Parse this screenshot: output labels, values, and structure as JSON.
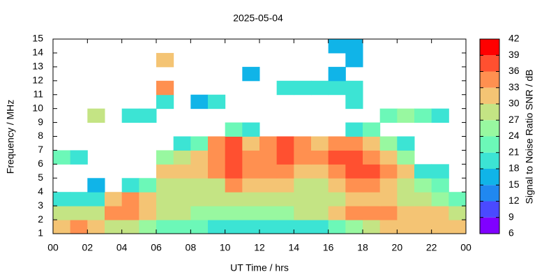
{
  "chart_data": {
    "type": "heatmap",
    "title": "2025-05-04",
    "xlabel": "UT Time / hrs",
    "ylabel": "Frequency / MHz",
    "xlim": [
      0,
      24
    ],
    "xticks": [
      {
        "value": 0,
        "label": "00"
      },
      {
        "value": 2,
        "label": "02"
      },
      {
        "value": 4,
        "label": "04"
      },
      {
        "value": 6,
        "label": "06"
      },
      {
        "value": 8,
        "label": "08"
      },
      10,
      12,
      14,
      16,
      18,
      20,
      22,
      {
        "value": 24,
        "label": "00"
      }
    ],
    "ylim": [
      1,
      15
    ],
    "yticks": [
      1,
      2,
      3,
      4,
      5,
      6,
      7,
      8,
      9,
      10,
      11,
      12,
      13,
      14,
      15
    ],
    "x_edges": [
      0,
      1,
      2,
      3,
      4,
      5,
      6,
      7,
      8,
      9,
      10,
      11,
      12,
      13,
      14,
      15,
      16,
      17,
      18,
      19,
      20,
      21,
      22,
      23,
      24
    ],
    "y_edges": [
      1,
      2,
      3,
      4,
      5,
      6,
      7,
      8,
      9,
      10,
      11,
      12,
      13,
      14,
      15
    ],
    "values": [
      [
        30,
        33,
        30,
        27,
        27,
        24,
        22,
        22,
        21,
        20,
        19,
        18,
        18,
        18,
        19,
        20,
        22,
        24,
        27,
        30,
        30,
        30,
        30,
        30
      ],
      [
        27,
        27,
        28,
        33,
        33,
        30,
        27,
        27,
        26,
        25,
        24,
        24,
        25,
        25,
        27,
        27,
        30,
        33,
        33,
        33,
        30,
        30,
        30,
        27
      ],
      [
        18,
        18,
        20,
        30,
        33,
        30,
        28,
        27,
        27,
        27,
        27,
        27,
        27,
        27,
        27,
        27,
        27,
        30,
        30,
        30,
        28,
        27,
        24,
        21
      ],
      [
        null,
        null,
        15,
        null,
        18,
        21,
        27,
        27,
        27,
        28,
        33,
        30,
        30,
        30,
        27,
        28,
        30,
        33,
        33,
        30,
        27,
        24,
        21,
        null
      ],
      [
        null,
        null,
        null,
        null,
        null,
        null,
        30,
        30,
        30,
        33,
        36,
        33,
        33,
        33,
        30,
        30,
        33,
        36,
        36,
        33,
        30,
        20,
        18,
        null
      ],
      [
        21,
        18,
        null,
        null,
        null,
        null,
        24,
        27,
        30,
        33,
        36,
        33,
        33,
        36,
        33,
        33,
        36,
        36,
        33,
        30,
        24,
        null,
        null,
        null
      ],
      [
        null,
        null,
        null,
        null,
        null,
        null,
        null,
        18,
        21,
        33,
        36,
        30,
        33,
        36,
        33,
        30,
        33,
        33,
        30,
        24,
        18,
        null,
        null,
        null
      ],
      [
        null,
        null,
        null,
        null,
        null,
        null,
        null,
        null,
        null,
        null,
        21,
        18,
        null,
        null,
        null,
        null,
        null,
        18,
        21,
        null,
        null,
        null,
        null,
        null
      ],
      [
        null,
        null,
        27,
        null,
        18,
        18,
        null,
        null,
        null,
        null,
        null,
        null,
        null,
        null,
        null,
        null,
        null,
        null,
        null,
        21,
        24,
        21,
        18,
        null
      ],
      [
        null,
        null,
        null,
        null,
        null,
        null,
        18,
        null,
        15,
        18,
        null,
        null,
        null,
        null,
        null,
        null,
        null,
        18,
        null,
        null,
        null,
        null,
        null,
        null
      ],
      [
        null,
        null,
        null,
        null,
        null,
        null,
        33,
        null,
        null,
        null,
        null,
        null,
        null,
        18,
        18,
        18,
        18,
        18,
        null,
        null,
        null,
        null,
        null,
        null
      ],
      [
        null,
        null,
        null,
        null,
        null,
        null,
        null,
        null,
        null,
        null,
        null,
        15,
        null,
        null,
        null,
        null,
        15,
        null,
        null,
        null,
        null,
        null,
        null,
        null
      ],
      [
        null,
        null,
        null,
        null,
        null,
        null,
        30,
        null,
        null,
        null,
        null,
        null,
        null,
        null,
        null,
        null,
        null,
        15,
        null,
        null,
        null,
        null,
        null,
        null
      ],
      [
        null,
        null,
        null,
        null,
        null,
        null,
        null,
        null,
        null,
        null,
        null,
        null,
        null,
        null,
        null,
        null,
        15,
        15,
        null,
        null,
        null,
        null,
        null,
        null
      ]
    ],
    "colorbar": {
      "label": "Signal to Noise Ratio SNR / dB",
      "lim": [
        6,
        42
      ],
      "ticks": [
        6,
        9,
        12,
        15,
        18,
        21,
        24,
        27,
        30,
        33,
        36,
        39,
        42
      ],
      "colors": [
        "#8000ff",
        "#4a4aff",
        "#2088f0",
        "#10b4e8",
        "#3ce4d4",
        "#6cf8b8",
        "#98f8a0",
        "#c4e484",
        "#f4c474",
        "#ff9050",
        "#ff5030",
        "#ff0000"
      ]
    }
  }
}
